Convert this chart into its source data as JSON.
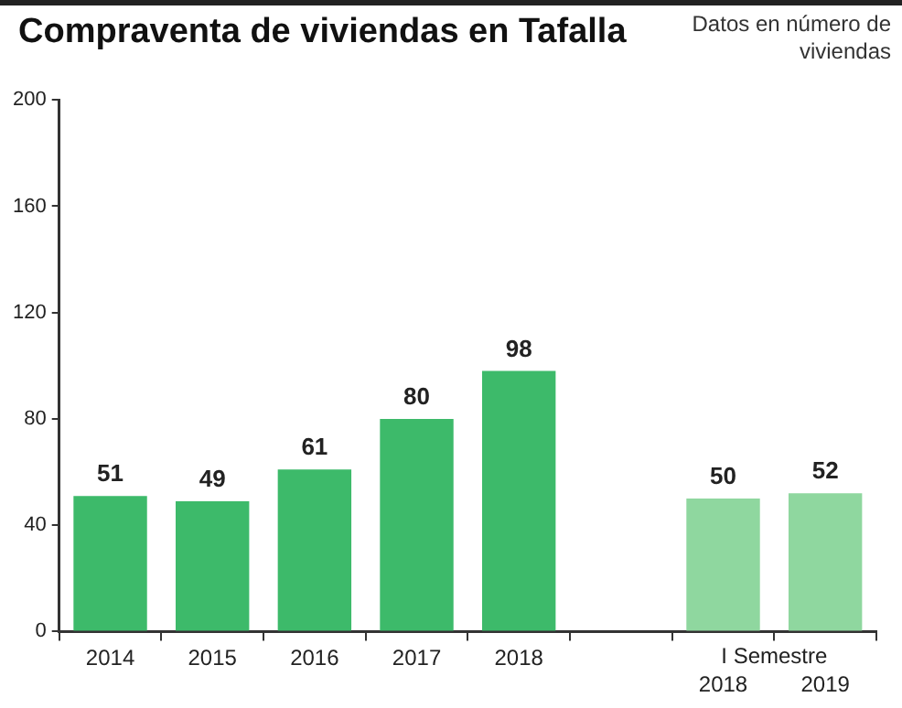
{
  "chart_data": {
    "type": "bar",
    "title": "Compraventa de viviendas en Tafalla",
    "subtitle": "Datos en número de viviendas",
    "categories": [
      "2014",
      "2015",
      "2016",
      "2017",
      "2018",
      null,
      "2018",
      "2019"
    ],
    "values": [
      51,
      49,
      61,
      80,
      98,
      null,
      50,
      52
    ],
    "colors": [
      "#3dba6a",
      "#3dba6a",
      "#3dba6a",
      "#3dba6a",
      "#3dba6a",
      null,
      "#8fd79f",
      "#8fd79f"
    ],
    "annotations": [
      "I Semestre"
    ],
    "ylim": [
      0,
      200
    ],
    "yticks": [
      0,
      40,
      80,
      120,
      160,
      200
    ],
    "grid": false,
    "legend": false,
    "data_labels": true
  }
}
